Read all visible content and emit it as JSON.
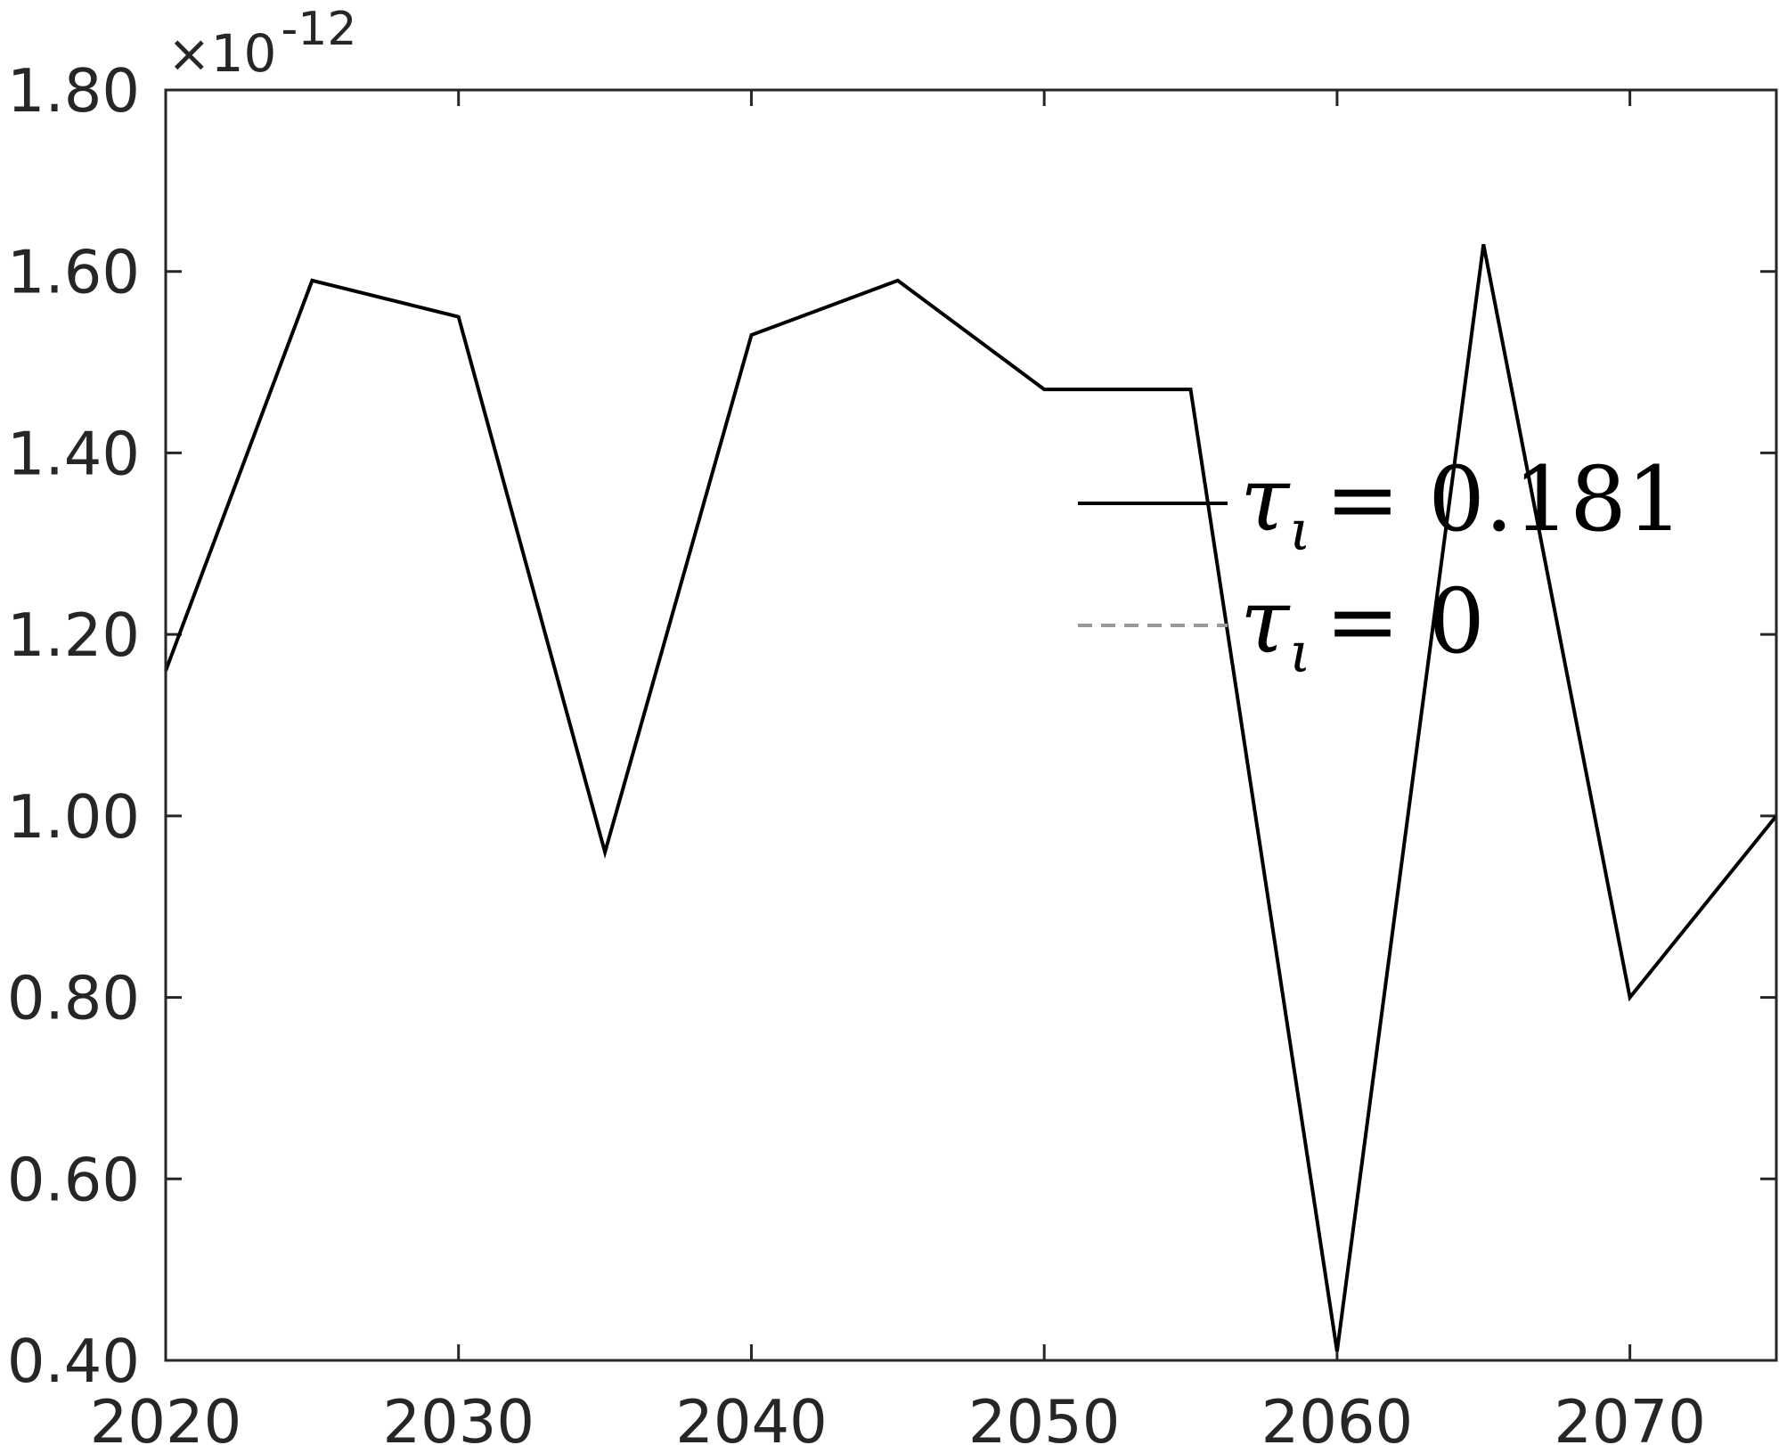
{
  "chart_data": {
    "type": "line",
    "title": "",
    "xlabel": "",
    "ylabel": "",
    "xlim": [
      2020,
      2075
    ],
    "ylim": [
      0.4,
      1.8
    ],
    "y_exponent": {
      "base": "×10",
      "power": "-12"
    },
    "x_ticks": [
      2020,
      2030,
      2040,
      2050,
      2060,
      2070
    ],
    "x_tick_labels": [
      "2020",
      "2030",
      "2040",
      "2050",
      "2060",
      "2070"
    ],
    "y_ticks": [
      0.4,
      0.6,
      0.8,
      1.0,
      1.2,
      1.4,
      1.6,
      1.8
    ],
    "y_tick_labels": [
      "0.40",
      "0.60",
      "0.80",
      "1.00",
      "1.20",
      "1.40",
      "1.60",
      "1.80"
    ],
    "grid": false,
    "legend_position": "upper-right-inside",
    "series": [
      {
        "name": "τι = 0.181",
        "legend_symbol": "τ",
        "legend_subscript": "ι",
        "legend_value": "= 0.181",
        "color": "#000000",
        "dash": "solid",
        "x": [
          2020,
          2025,
          2030,
          2035,
          2040,
          2045,
          2050,
          2055,
          2060,
          2065,
          2070,
          2075
        ],
        "y": [
          1.16,
          1.59,
          1.55,
          0.96,
          1.53,
          1.59,
          1.47,
          1.47,
          0.41,
          1.63,
          0.8,
          1.0
        ]
      },
      {
        "name": "τι = 0",
        "legend_symbol": "τ",
        "legend_subscript": "ι",
        "legend_value": "= 0",
        "color": "#999999",
        "dash": "dashed",
        "x": [],
        "y": []
      }
    ]
  }
}
